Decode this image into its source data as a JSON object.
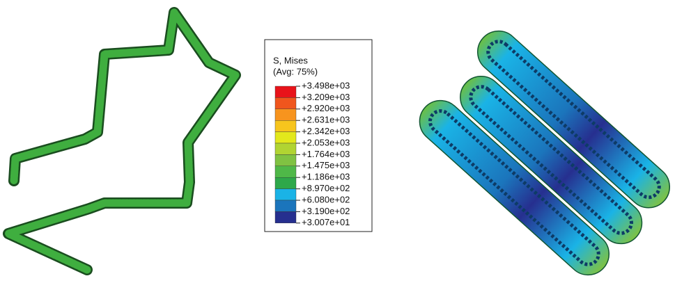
{
  "legend": {
    "title": "S, Mises",
    "subtitle": "(Avg: 75%)",
    "levels": [
      "+3.498e+03",
      "+3.209e+03",
      "+2.920e+03",
      "+2.631e+03",
      "+2.342e+03",
      "+2.053e+03",
      "+1.764e+03",
      "+1.475e+03",
      "+1.186e+03",
      "+8.970e+02",
      "+6.080e+02",
      "+3.190e+02",
      "+3.007e+01"
    ],
    "band_colors": [
      "#e8131a",
      "#f0561d",
      "#f7941e",
      "#f7c51d",
      "#e3e81c",
      "#b1d432",
      "#80c242",
      "#4fb848",
      "#2ea84a",
      "#1ab3e6",
      "#1b75bc",
      "#262f8f"
    ]
  }
}
